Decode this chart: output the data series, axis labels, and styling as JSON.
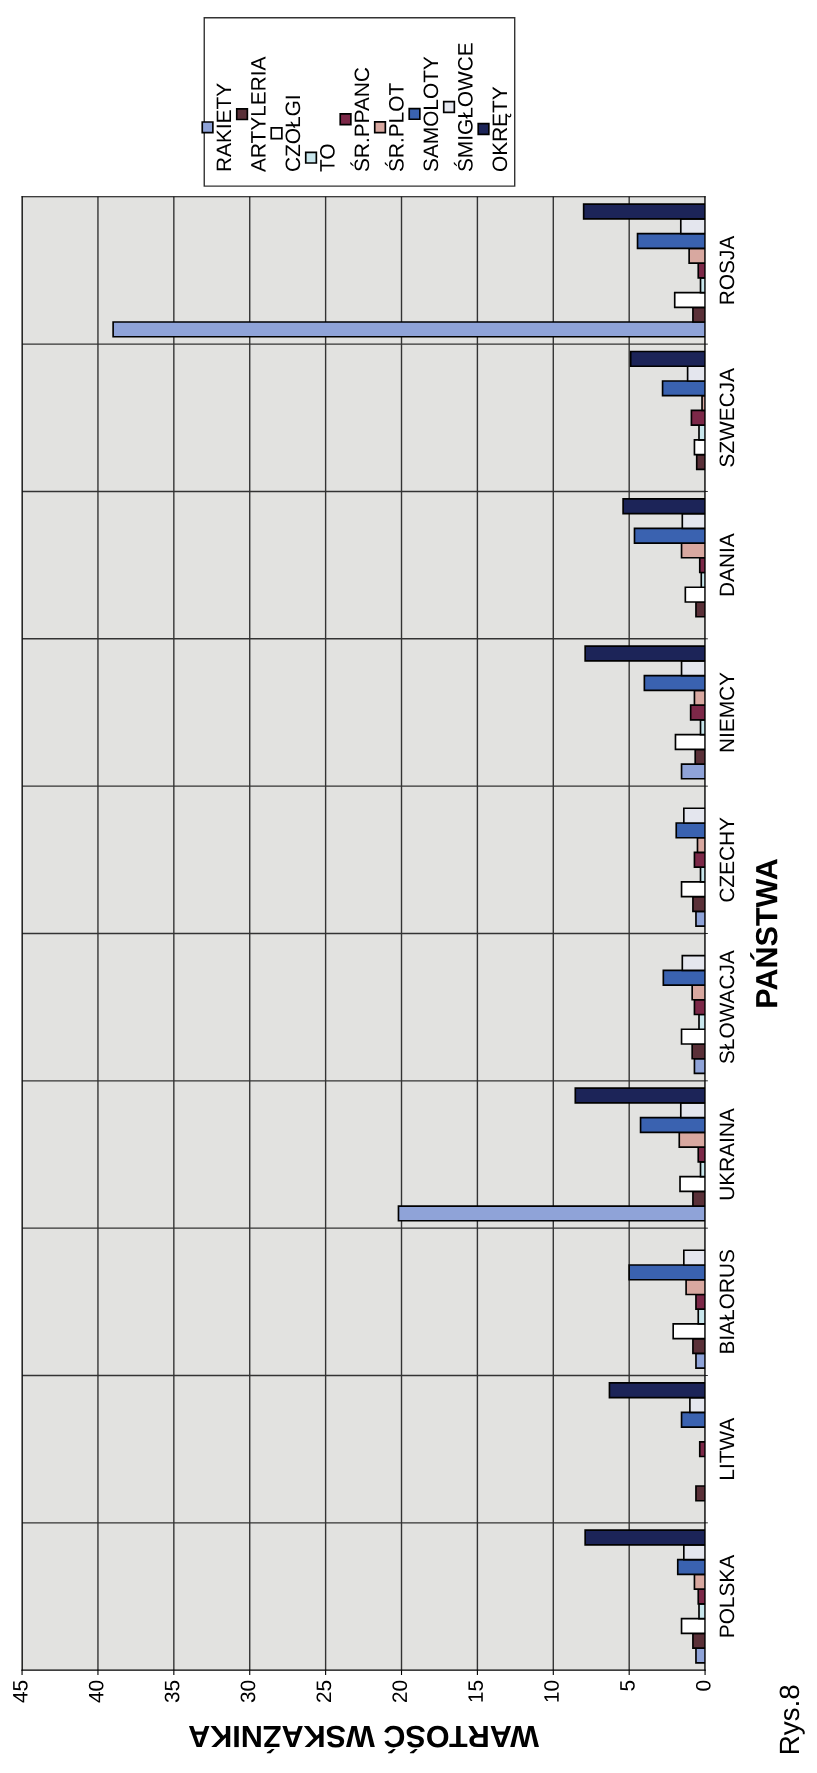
{
  "chart_data": {
    "type": "bar",
    "orientation": "horizontal",
    "xlabel": "WARTOŚĆ WSKAŹNIKA",
    "ylabel": "PAŃSTWA",
    "annotations": [
      "Rys.8"
    ],
    "categories": [
      "ROSJA",
      "SZWECJA",
      "DANIA",
      "NIEMCY",
      "CZECHY",
      "SŁOWACJA",
      "UKRAINA",
      "BIAŁORUS",
      "LITWA",
      "POLSKA"
    ],
    "series": [
      {
        "name": "RAKIETY",
        "color": "#8fa3d8",
        "values": [
          39.0,
          null,
          null,
          1.55,
          0.6,
          0.7,
          20.2,
          0.6,
          null,
          0.6
        ]
      },
      {
        "name": "ARTYLERIA",
        "color": "#5a3038",
        "values": [
          0.8,
          0.55,
          0.6,
          0.65,
          0.8,
          0.85,
          0.8,
          0.8,
          0.6,
          0.8
        ]
      },
      {
        "name": "CZOŁGI",
        "color": "#ffffff",
        "values": [
          2.0,
          0.7,
          1.3,
          1.95,
          1.55,
          1.55,
          1.65,
          2.1,
          null,
          1.55
        ]
      },
      {
        "name": "TO",
        "color": "#c8e6ec",
        "values": [
          0.3,
          0.4,
          0.25,
          0.3,
          0.3,
          0.4,
          0.3,
          0.45,
          null,
          0.4
        ]
      },
      {
        "name": "ŚR.PPANC",
        "color": "#7c2848",
        "values": [
          0.45,
          0.9,
          0.35,
          0.95,
          0.7,
          0.7,
          0.45,
          0.6,
          0.35,
          0.45
        ]
      },
      {
        "name": "ŚR.PLOT",
        "color": "#d8a8a0",
        "values": [
          1.05,
          0.2,
          1.55,
          0.7,
          0.5,
          0.85,
          1.7,
          1.25,
          null,
          0.7
        ]
      },
      {
        "name": "SAMOLOTY",
        "color": "#3a62b0",
        "values": [
          4.45,
          2.8,
          4.65,
          4.0,
          1.9,
          2.75,
          4.25,
          5.0,
          1.55,
          1.8
        ]
      },
      {
        "name": "ŚMIGŁOWCE",
        "color": "#e4e6ee",
        "values": [
          1.6,
          1.15,
          1.5,
          1.55,
          1.4,
          1.5,
          1.6,
          1.4,
          1.0,
          1.4
        ]
      },
      {
        "name": "OKRĘTY",
        "color": "#1c2458",
        "values": [
          8.0,
          4.9,
          5.4,
          7.9,
          null,
          null,
          8.55,
          null,
          6.3,
          7.9
        ]
      }
    ],
    "xlim": [
      45,
      0
    ],
    "xticks": [
      45,
      40,
      35,
      30,
      25,
      20,
      15,
      10,
      5,
      0
    ],
    "grid": true,
    "legend": "top"
  }
}
